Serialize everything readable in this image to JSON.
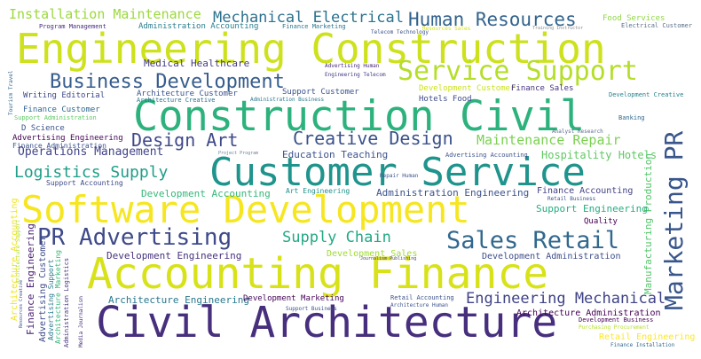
{
  "words": [
    {
      "text": "Engineering Construction",
      "color": "#cde11d"
    },
    {
      "text": "Construction Civil",
      "color": "#2db27d"
    },
    {
      "text": "Customer Service",
      "color": "#1f948c"
    },
    {
      "text": "Software Development",
      "color": "#f6e620"
    },
    {
      "text": "Accounting Finance",
      "color": "#d8e219"
    },
    {
      "text": "Civil Architecture",
      "color": "#472f7d"
    },
    {
      "text": "Service Support",
      "color": "#b5de2b"
    },
    {
      "text": "Business Development",
      "color": "#365d8d"
    },
    {
      "text": "Human Resources",
      "color": "#33638d"
    },
    {
      "text": "PR Advertising",
      "color": "#3e4a89"
    },
    {
      "text": "Sales Retail",
      "color": "#31688e"
    },
    {
      "text": "Marketing PR",
      "color": "#39568c"
    },
    {
      "text": "Creative Design",
      "color": "#3b528b"
    },
    {
      "text": "Design Art",
      "color": "#3f4889"
    },
    {
      "text": "Mechanical Electrical",
      "color": "#2c728e"
    },
    {
      "text": "Installation Maintenance",
      "color": "#9bd93c"
    },
    {
      "text": "Supply Chain",
      "color": "#22a884"
    },
    {
      "text": "Logistics Supply",
      "color": "#1f9e89"
    },
    {
      "text": "Engineering Mechanical",
      "color": "#404387"
    },
    {
      "text": "Maintenance Repair",
      "color": "#7ad151"
    },
    {
      "text": "Operations Management",
      "color": "#414487"
    },
    {
      "text": "Medical Healthcare",
      "color": "#443a83"
    },
    {
      "text": "Education Teaching",
      "color": "#3b528b"
    },
    {
      "text": "Hospitality Hotels",
      "color": "#5ec962"
    },
    {
      "text": "Manufacturing Production",
      "color": "#52c569"
    },
    {
      "text": "Development Engineering",
      "color": "#46327e"
    },
    {
      "text": "Development Accounting",
      "color": "#35b779"
    },
    {
      "text": "Architecture Engineering",
      "color": "#2a788e"
    },
    {
      "text": "Development Marketing",
      "color": "#450457"
    },
    {
      "text": "Architecture Administration",
      "color": "#440154"
    },
    {
      "text": "Administration Engineering",
      "color": "#3b528b"
    },
    {
      "text": "Finance Accounting",
      "color": "#424086"
    },
    {
      "text": "Support Engineering",
      "color": "#27ad81"
    },
    {
      "text": "Development Administration",
      "color": "#3d4d8a"
    },
    {
      "text": "Development Sales",
      "color": "#a0da39"
    },
    {
      "text": "Retail Engineering",
      "color": "#fde725"
    },
    {
      "text": "Food Services",
      "color": "#8fd744"
    },
    {
      "text": "Electrical Customer",
      "color": "#5b6e8a"
    },
    {
      "text": "Administration Accounting",
      "color": "#287d8e"
    },
    {
      "text": "Program Management",
      "color": "#472c7a"
    },
    {
      "text": "Finance Marketing",
      "color": "#2a768e"
    },
    {
      "text": "Telecom Technology",
      "color": "#3b528b"
    },
    {
      "text": "Resources Sales",
      "color": "#d0e11c"
    },
    {
      "text": "Training Instructor",
      "color": "#8b8b8b"
    },
    {
      "text": "Advertising Human",
      "color": "#482878"
    },
    {
      "text": "Engineering Telecom",
      "color": "#443983"
    },
    {
      "text": "Development Customer",
      "color": "#cde11d"
    },
    {
      "text": "Finance Sales",
      "color": "#46337f"
    },
    {
      "text": "Development Creative",
      "color": "#26818e"
    },
    {
      "text": "Writing Editorial",
      "color": "#3e4989"
    },
    {
      "text": "Architecture Customer",
      "color": "#3b528b"
    },
    {
      "text": "Architecture Creative",
      "color": "#2c728e"
    },
    {
      "text": "Administration Business",
      "color": "#2a788e"
    },
    {
      "text": "Support Customer",
      "color": "#3b528b"
    },
    {
      "text": "Hotels Food",
      "color": "#3e4a89"
    },
    {
      "text": "Finance Customer",
      "color": "#31688e"
    },
    {
      "text": "Support Administration",
      "color": "#5ec962"
    },
    {
      "text": "D Science",
      "color": "#3b528b"
    },
    {
      "text": "Advertising Engineering",
      "color": "#440154"
    },
    {
      "text": "Finance Administration",
      "color": "#3b528b"
    },
    {
      "text": "Banking",
      "color": "#31688e"
    },
    {
      "text": "Analyst Research",
      "color": "#5c6c8a"
    },
    {
      "text": "Advertising Accounting",
      "color": "#3b528b"
    },
    {
      "text": "Support Accounting",
      "color": "#3e4a89"
    },
    {
      "text": "Art Engineering",
      "color": "#21918c"
    },
    {
      "text": "Repair Human",
      "color": "#3b528b"
    },
    {
      "text": "Retail Business",
      "color": "#3b528b"
    },
    {
      "text": "Quality",
      "color": "#440154"
    },
    {
      "text": "Project Program",
      "color": "#6f7f9a"
    },
    {
      "text": "Journalism Publishing",
      "color": "#4a4a6a"
    },
    {
      "text": "Retail Accounting",
      "color": "#3b528b"
    },
    {
      "text": "Architecture Human",
      "color": "#3b528b"
    },
    {
      "text": "Support Business",
      "color": "#3b528b"
    },
    {
      "text": "Development Business",
      "color": "#440154"
    },
    {
      "text": "Purchasing Procurement",
      "color": "#b5de2b"
    },
    {
      "text": "Finance Installation",
      "color": "#31688e"
    },
    {
      "text": "Tourism Travel",
      "color": "#31688e"
    },
    {
      "text": "Architecture Accounting",
      "color": "#f1e51d"
    },
    {
      "text": "Finance Engineering",
      "color": "#482173"
    },
    {
      "text": "Advertising Customer",
      "color": "#3e4a89"
    },
    {
      "text": "Architecture Marketing",
      "color": "#35b779"
    },
    {
      "text": "Advertising Support",
      "color": "#2a788e"
    },
    {
      "text": "Resources Creative",
      "color": "#3b528b"
    },
    {
      "text": "Administration Logistics",
      "color": "#46327e"
    },
    {
      "text": "Media Journalism",
      "color": "#46327e"
    },
    {
      "text": "Architecture Support",
      "color": "#b5de2b"
    }
  ]
}
